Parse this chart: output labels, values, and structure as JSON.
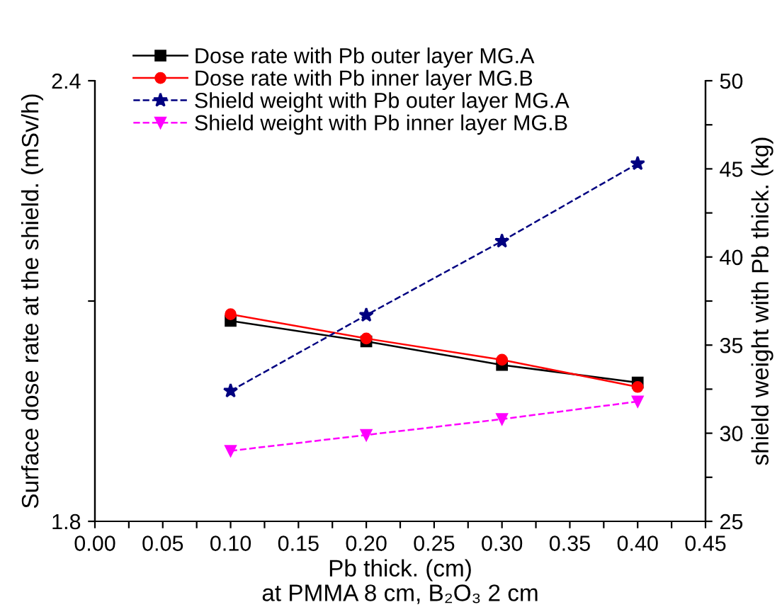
{
  "chart_data": {
    "type": "line",
    "xlabel": "Pb thick. (cm)",
    "ylabel": "Surface dose rate at the shield. (mSv/h)",
    "y2label": "shield weight with Pb thick. (kg)",
    "annotations": [
      "at PMMA 8 cm, B₂O₃ 2 cm"
    ],
    "x": [
      0.1,
      0.2,
      0.3,
      0.4
    ],
    "series": [
      {
        "name": "Dose rate with Pb outer layer MG.A",
        "color": "#000000",
        "marker": "square",
        "line_style": "solid",
        "values": [
          2.073,
          2.045,
          2.013,
          1.989
        ]
      },
      {
        "name": "Dose rate with Pb inner layer MG.B",
        "color": "#ff0000",
        "marker": "circle",
        "line_style": "solid",
        "values": [
          2.082,
          2.049,
          2.02,
          1.983
        ]
      },
      {
        "name": "Shield weight with Pb outer layer MG.A",
        "color": "#000080",
        "marker": "star",
        "line_style": "dashed",
        "axis": "y2",
        "values": [
          32.4,
          36.7,
          40.9,
          45.3
        ]
      },
      {
        "name": "Shield weight with Pb inner layer MG.B",
        "color": "#ff00ff",
        "marker": "triangle",
        "line_style": "dashed",
        "axis": "y2",
        "values": [
          29.0,
          29.9,
          30.8,
          31.8
        ]
      }
    ],
    "xlim": [
      0,
      0.45
    ],
    "xticks": [
      {
        "value": 0,
        "label": "0.00"
      },
      {
        "value": 0.025,
        "label": null
      },
      {
        "value": 0.05,
        "label": "0.05"
      },
      {
        "value": 0.075,
        "label": null
      },
      {
        "value": 0.1,
        "label": "0.10"
      },
      {
        "value": 0.125,
        "label": null
      },
      {
        "value": 0.15,
        "label": "0.15"
      },
      {
        "value": 0.175,
        "label": null
      },
      {
        "value": 0.2,
        "label": "0.20"
      },
      {
        "value": 0.225,
        "label": null
      },
      {
        "value": 0.25,
        "label": "0.25"
      },
      {
        "value": 0.275,
        "label": null
      },
      {
        "value": 0.3,
        "label": "0.30"
      },
      {
        "value": 0.325,
        "label": null
      },
      {
        "value": 0.35,
        "label": "0.35"
      },
      {
        "value": 0.375,
        "label": null
      },
      {
        "value": 0.4,
        "label": "0.40"
      },
      {
        "value": 0.425,
        "label": null
      },
      {
        "value": 0.45,
        "label": "0.45"
      }
    ],
    "ylim": [
      1.8,
      2.4
    ],
    "yticks": [
      1.8,
      {
        "value": 2.1,
        "label": null
      },
      2.4
    ],
    "y2lim": [
      25,
      50
    ],
    "y2ticks": [
      25,
      {
        "value": 27.5,
        "label": null
      },
      30,
      {
        "value": 32.5,
        "label": null
      },
      35,
      {
        "value": 37.5,
        "label": null
      },
      40,
      {
        "value": 42.5,
        "label": null
      },
      45,
      {
        "value": 47.5,
        "label": null
      },
      50
    ],
    "grid": false,
    "legend": "top"
  }
}
